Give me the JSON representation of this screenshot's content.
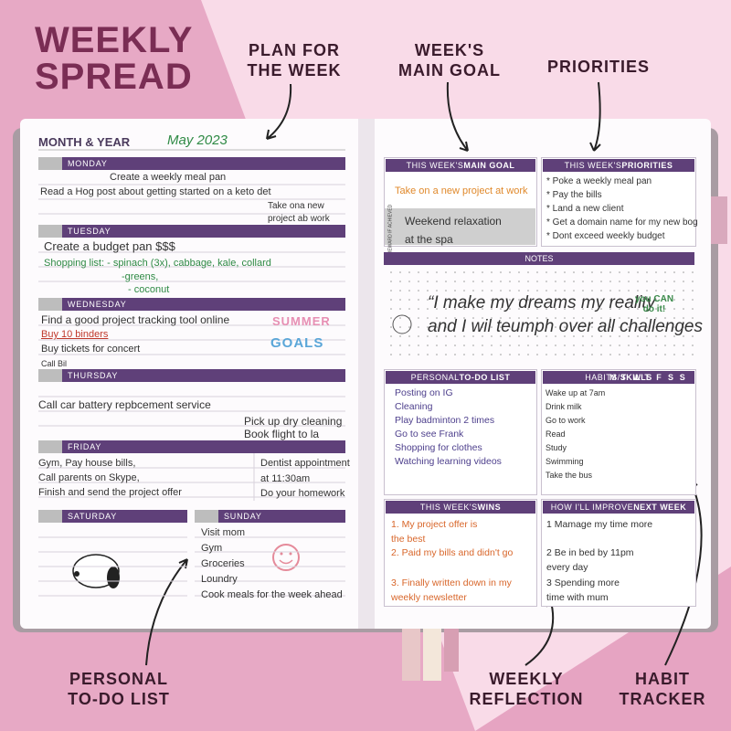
{
  "title": [
    "WEEKLY",
    "SPREAD"
  ],
  "callouts": {
    "plan": [
      "PLAN FOR",
      "THE WEEK"
    ],
    "goal": [
      "WEEK'S",
      "MAIN GOAL"
    ],
    "priorities": [
      "PRIORITIES"
    ],
    "todo": [
      "PERSONAL",
      "TO-DO LIST"
    ],
    "reflection": [
      "WEEKLY",
      "REFLECTION"
    ],
    "habit": [
      "HABIT",
      "TRACKER"
    ]
  },
  "left_page": {
    "month_year": {
      "label": "MONTH & YEAR",
      "value": "May 2023"
    },
    "days": [
      {
        "name": "MONDAY",
        "entries": [
          "Create a weekly meal pan",
          "Read a Hog post about getting started on a keto det",
          "Take ona new project ab work"
        ]
      },
      {
        "name": "TUESDAY",
        "entries": [
          "Create a budget pan $$$",
          "Shopping list: - spinach (3x), cabbage, kale, collard",
          "-greens,",
          "- coconut"
        ]
      },
      {
        "name": "WEDNESDAY",
        "entries": [
          "Find a good project tracking tool online",
          "Buy 10 binders",
          "Buy tickets for concert",
          "Call Bil"
        ]
      },
      {
        "name": "THURSDAY",
        "entries": [
          "Call car battery repbcement service",
          "Pick up dry cleaning",
          "Book flight to la"
        ]
      },
      {
        "name": "FRIDAY",
        "entries": [
          "Gym, Pay house bills,",
          "Call parents on Skype,",
          "Finish and send the project offer",
          "Dentist appointment",
          "at 11:30am",
          "Do your homework"
        ]
      },
      {
        "name": "SATURDAY",
        "entries": []
      },
      {
        "name": "SUNDAY",
        "entries": [
          "Visit mom",
          "Gym",
          "Groceries",
          "Loundry",
          "Cook meals for the week ahead"
        ]
      }
    ],
    "sticker": [
      "SUMMER",
      "GOALS"
    ]
  },
  "right_page": {
    "main_goal": {
      "prefix": "THIS WEEK'S",
      "bold": "MAIN GOAL",
      "goal": "Take on a new project at work",
      "reward_label": "REWARD IF ACHIEVED",
      "reward": "Weekend relaxation at the spa"
    },
    "priorities": {
      "prefix": "THIS WEEK'S",
      "bold": "PRIORITIES",
      "items": [
        "* Poke a weekly meal pan",
        "* Pay the bills",
        "* Land a new client",
        "* Get a domain name for my new bog",
        "* Dont exceed weekly budget"
      ]
    },
    "notes": {
      "label": "NOTES",
      "lines": [
        "“I make my dreams my reality",
        "and I wil teumph over all challenges"
      ],
      "sticker": "you CAN do it!"
    },
    "todo": {
      "prefix": "PERSONAL",
      "bold": "TO-DO LIST",
      "items": [
        "Posting on IG",
        "Cleaning",
        "Play badminton 2 times",
        "Go to see Frank",
        "Shopping for clothes",
        "Watching learning videos"
      ]
    },
    "habits": {
      "prefix": "HABITS/",
      "bold": "SKILLS",
      "days": [
        "M",
        "T",
        "W",
        "T",
        "F",
        "S",
        "S"
      ],
      "items": [
        "Wake up at 7am",
        "Drink milk",
        "Go to work",
        "Read",
        "Study",
        "Swimming",
        "Take the bus"
      ]
    },
    "wins": {
      "prefix": "THIS WEEK'S",
      "bold": "WINS",
      "items": [
        "1. My project offer is the best",
        "2. Paid my bills and didn't go",
        "3. Finally written down in my weekly newsletter"
      ]
    },
    "improve": {
      "prefix": "HOW I'LL IMPROVE",
      "bold": "NEXT WEEK",
      "items": [
        "1 Mamage my time more",
        "2 Be in bed by 11pm every day",
        "3 Spending more time with mum"
      ]
    }
  }
}
